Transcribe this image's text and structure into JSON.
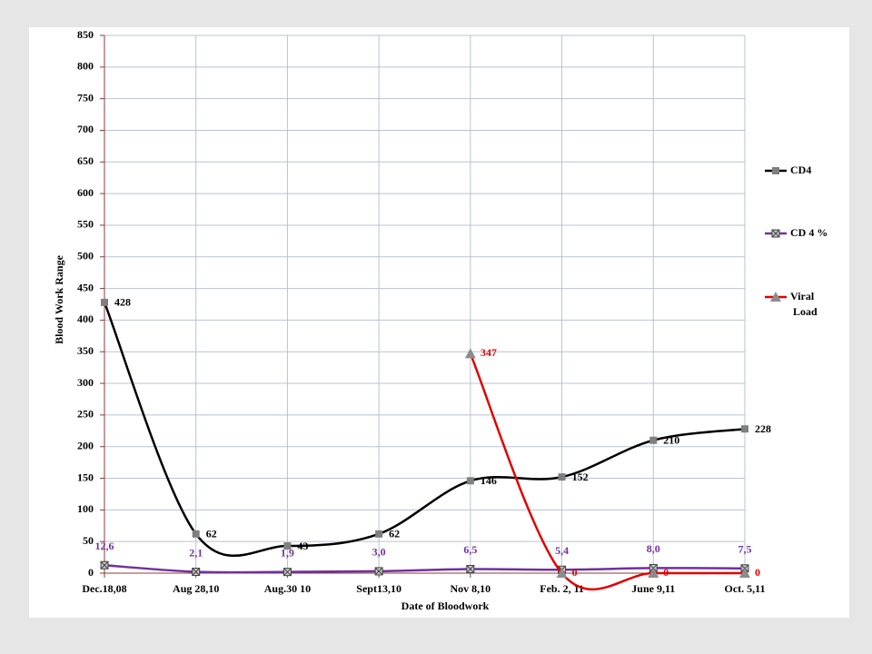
{
  "chart_data": {
    "type": "line",
    "x_label": "Date of Bloodwork",
    "y_label": "Blood Work Range",
    "categories": [
      "Dec.18,08",
      "Aug 28,10",
      "Aug.30 10",
      "Sept13,10",
      "Nov 8,10",
      "Feb. 2, 11",
      "June 9,11",
      "Oct. 5,11"
    ],
    "series": [
      {
        "name": "CD4",
        "color": "#000000",
        "marker_color": "#7f7f7f",
        "marker": "square",
        "label_color": "#000000",
        "values": [
          428,
          62,
          43,
          62,
          146,
          152,
          210,
          228
        ]
      },
      {
        "name": "CD 4 %",
        "color": "#7030a0",
        "marker_color": "#404040",
        "marker": "x-square",
        "label_color": "#7030a0",
        "values": [
          12.6,
          2.1,
          1.9,
          3.0,
          6.5,
          5.4,
          8.0,
          7.5
        ],
        "value_labels": [
          "12,6",
          "2,1",
          "1,9",
          "3,0",
          "6,5",
          "5,4",
          "8,0",
          "7,5"
        ]
      },
      {
        "name": "Viral Load",
        "color": "#e00000",
        "marker_color": "#8c8c8c",
        "marker": "triangle",
        "label_color": "#e00000",
        "values": [
          null,
          null,
          null,
          null,
          347,
          0,
          0,
          0
        ]
      }
    ],
    "ylim": [
      0,
      850
    ],
    "yticks": [
      0,
      50,
      100,
      150,
      200,
      250,
      300,
      350,
      400,
      450,
      500,
      550,
      600,
      650,
      700,
      750,
      800,
      850
    ],
    "grid": true,
    "smooth": true,
    "legend": "right"
  }
}
